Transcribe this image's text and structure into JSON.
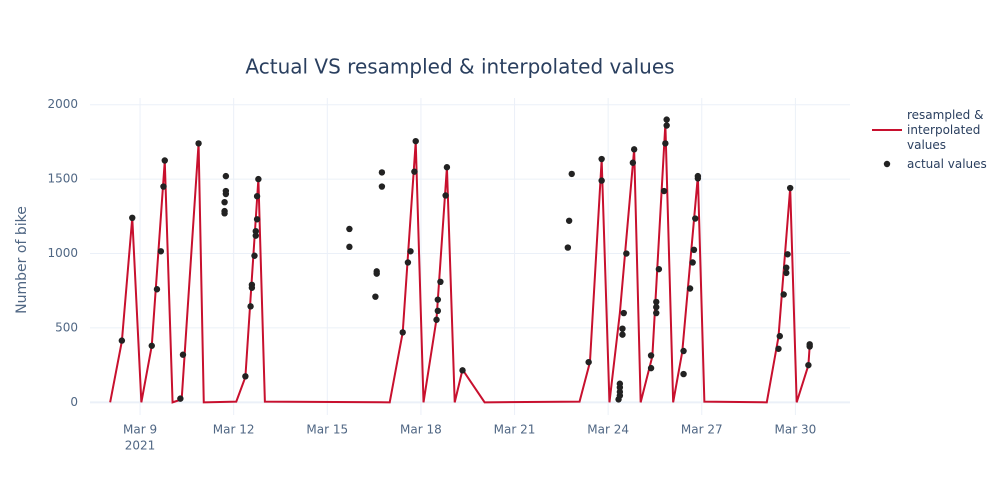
{
  "chart_data": {
    "type": "line",
    "title": "Actual VS resampled & interpolated values",
    "y_label": "Number of bike",
    "xlim": [
      "2021-03-07 09:30",
      "2021-03-31 18:00"
    ],
    "ylim": [
      -85,
      2045
    ],
    "yticks": [
      0,
      500,
      1000,
      1500,
      2000
    ],
    "xticks": [
      {
        "value": "2021-03-09 00:00",
        "label": "Mar 9"
      },
      {
        "value": "2021-03-12 00:00",
        "label": "Mar 12"
      },
      {
        "value": "2021-03-15 00:00",
        "label": "Mar 15"
      },
      {
        "value": "2021-03-18 00:00",
        "label": "Mar 18"
      },
      {
        "value": "2021-03-21 00:00",
        "label": "Mar 21"
      },
      {
        "value": "2021-03-24 00:00",
        "label": "Mar 24"
      },
      {
        "value": "2021-03-27 00:00",
        "label": "Mar 27"
      },
      {
        "value": "2021-03-30 00:00",
        "label": "Mar 30"
      }
    ],
    "xtick_year": "2021",
    "grid": true,
    "legend_position": "right",
    "series": [
      {
        "name": "resampled & interpolated values",
        "mode": "lines",
        "color": "#c8102e",
        "x": [
          "2021-03-08 01:00",
          "2021-03-08 10:00",
          "2021-03-08 18:00",
          "2021-03-09 01:00",
          "2021-03-09 09:00",
          "2021-03-09 19:00",
          "2021-03-10 01:00",
          "2021-03-10 08:00",
          "2021-03-10 21:00",
          "2021-03-11 01:00",
          "2021-03-12 02:00",
          "2021-03-12 09:00",
          "2021-03-12 19:00",
          "2021-03-13 00:00",
          "2021-03-17 00:00",
          "2021-03-17 10:00",
          "2021-03-17 20:00",
          "2021-03-18 02:00",
          "2021-03-18 12:00",
          "2021-03-18 20:00",
          "2021-03-19 02:00",
          "2021-03-19 08:00",
          "2021-03-20 01:00",
          "2021-03-23 02:00",
          "2021-03-23 10:00",
          "2021-03-23 19:00",
          "2021-03-24 01:00",
          "2021-03-24 09:00",
          "2021-03-24 20:00",
          "2021-03-25 01:00",
          "2021-03-25 10:00",
          "2021-03-25 20:00",
          "2021-03-26 02:00",
          "2021-03-26 09:00",
          "2021-03-26 21:00",
          "2021-03-27 02:00",
          "2021-03-29 02:00",
          "2021-03-29 11:00",
          "2021-03-29 20:00",
          "2021-03-30 01:00",
          "2021-03-30 10:00",
          "2021-03-30 11:00"
        ],
        "values": [
          0,
          410,
          1240,
          0,
          380,
          1620,
          0,
          20,
          1740,
          0,
          5,
          170,
          1500,
          5,
          0,
          470,
          1750,
          0,
          560,
          1580,
          0,
          220,
          0,
          5,
          270,
          1630,
          0,
          600,
          1700,
          0,
          310,
          1870,
          0,
          340,
          1520,
          5,
          0,
          440,
          1440,
          0,
          250,
          380
        ]
      },
      {
        "name": "actual values",
        "mode": "markers",
        "color": "#222222",
        "x": [
          "2021-03-08 10:00",
          "2021-03-08 18:00",
          "2021-03-09 09:00",
          "2021-03-09 13:00",
          "2021-03-09 16:00",
          "2021-03-09 18:00",
          "2021-03-09 19:00",
          "2021-03-10 07:00",
          "2021-03-10 09:00",
          "2021-03-10 21:00",
          "2021-03-11 18:00",
          "2021-03-11 18:00",
          "2021-03-11 18:00",
          "2021-03-11 17:00",
          "2021-03-11 17:00",
          "2021-03-11 17:00",
          "2021-03-12 09:00",
          "2021-03-12 13:00",
          "2021-03-12 14:00",
          "2021-03-12 14:00",
          "2021-03-12 16:00",
          "2021-03-12 17:00",
          "2021-03-12 17:00",
          "2021-03-12 18:00",
          "2021-03-12 18:00",
          "2021-03-12 19:00",
          "2021-03-15 17:00",
          "2021-03-15 17:00",
          "2021-03-16 13:00",
          "2021-03-16 14:00",
          "2021-03-16 14:00",
          "2021-03-16 18:00",
          "2021-03-16 18:00",
          "2021-03-17 10:00",
          "2021-03-17 14:00",
          "2021-03-17 16:00",
          "2021-03-17 19:00",
          "2021-03-17 20:00",
          "2021-03-18 12:00",
          "2021-03-18 13:00",
          "2021-03-18 13:00",
          "2021-03-18 15:00",
          "2021-03-18 19:00",
          "2021-03-18 20:00",
          "2021-03-19 08:00",
          "2021-03-22 17:00",
          "2021-03-22 18:00",
          "2021-03-22 20:00",
          "2021-03-23 09:00",
          "2021-03-23 19:00",
          "2021-03-23 19:00",
          "2021-03-24 08:00",
          "2021-03-24 09:00",
          "2021-03-24 09:00",
          "2021-03-24 09:00",
          "2021-03-24 09:00",
          "2021-03-24 11:00",
          "2021-03-24 11:00",
          "2021-03-24 12:00",
          "2021-03-24 14:00",
          "2021-03-24 19:00",
          "2021-03-24 20:00",
          "2021-03-25 09:00",
          "2021-03-25 09:00",
          "2021-03-25 13:00",
          "2021-03-25 13:00",
          "2021-03-25 13:00",
          "2021-03-25 15:00",
          "2021-03-25 19:00",
          "2021-03-25 20:00",
          "2021-03-25 21:00",
          "2021-03-25 21:00",
          "2021-03-26 10:00",
          "2021-03-26 10:00",
          "2021-03-26 15:00",
          "2021-03-26 17:00",
          "2021-03-26 18:00",
          "2021-03-26 19:00",
          "2021-03-26 21:00",
          "2021-03-26 21:00",
          "2021-03-29 11:00",
          "2021-03-29 12:00",
          "2021-03-29 15:00",
          "2021-03-29 17:00",
          "2021-03-29 17:00",
          "2021-03-29 18:00",
          "2021-03-29 20:00",
          "2021-03-30 10:00",
          "2021-03-30 11:00",
          "2021-03-30 11:00"
        ],
        "values": [
          415,
          1240,
          380,
          760,
          1015,
          1450,
          1625,
          25,
          320,
          1740,
          1520,
          1420,
          1400,
          1345,
          1285,
          1270,
          175,
          645,
          790,
          770,
          985,
          1150,
          1120,
          1230,
          1385,
          1500,
          1165,
          1045,
          710,
          880,
          865,
          1545,
          1450,
          470,
          940,
          1015,
          1550,
          1755,
          555,
          615,
          690,
          810,
          1390,
          1580,
          215,
          1040,
          1220,
          1535,
          270,
          1490,
          1635,
          20,
          45,
          70,
          100,
          125,
          455,
          495,
          600,
          1000,
          1610,
          1700,
          230,
          315,
          600,
          640,
          675,
          895,
          1420,
          1740,
          1860,
          1900,
          190,
          345,
          765,
          940,
          1025,
          1235,
          1505,
          1520,
          360,
          445,
          725,
          870,
          905,
          995,
          1440,
          250,
          375,
          390
        ]
      }
    ]
  }
}
